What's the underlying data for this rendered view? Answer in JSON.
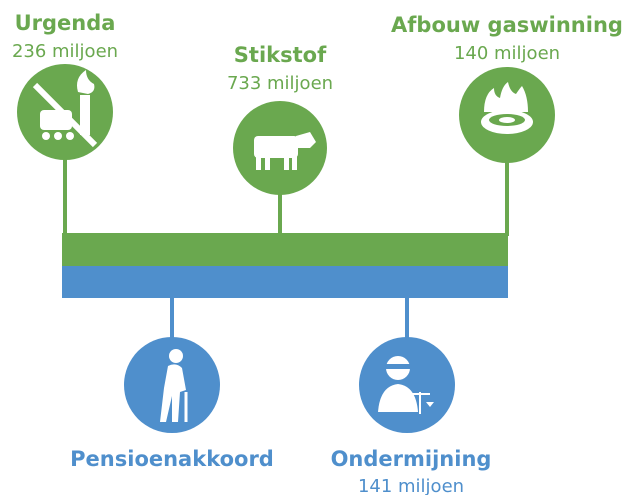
{
  "top": [
    {
      "title": "Urgenda",
      "amount": "236 miljoen"
    },
    {
      "title": "Stikstof",
      "amount": "733 miljoen"
    },
    {
      "title": "Afbouw gaswinning",
      "amount": "140 miljoen"
    }
  ],
  "bottom": [
    {
      "title": "Pensioenakkoord"
    },
    {
      "title": "Ondermijning",
      "amount": "141 miljoen"
    }
  ]
}
